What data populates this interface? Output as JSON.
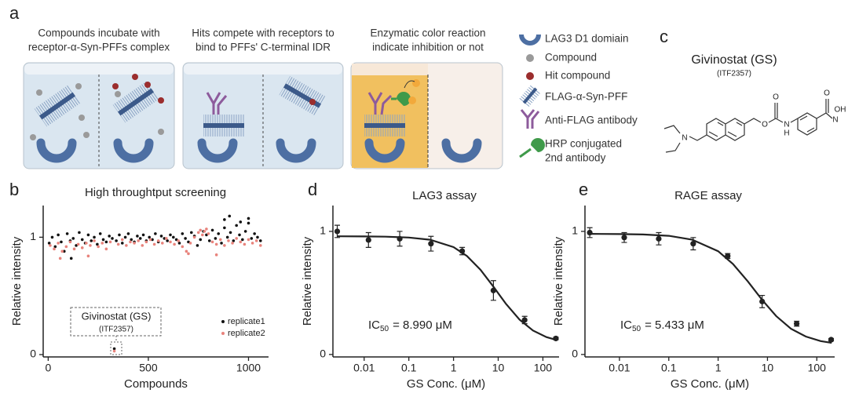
{
  "panel_a": {
    "label": "a",
    "steps": [
      [
        "Compounds incubate with",
        "receptor-α-Syn-PFFs complex"
      ],
      [
        "Hits compete with receptors to",
        "bind to PFFs' C-terminal IDR"
      ],
      [
        "Enzymatic color reaction",
        "indicate inhibition or not"
      ]
    ],
    "legend": [
      [
        "LAG3 D1 domiain"
      ],
      [
        "Compound"
      ],
      [
        "Hit compound"
      ],
      [
        "FLAG-α-Syn-PFF"
      ],
      [
        "Anti-FLAG antibody"
      ],
      [
        "HRP conjugated",
        "2nd antibody"
      ]
    ]
  },
  "panel_c": {
    "label": "c",
    "name": "Givinostat (GS)",
    "code": "(ITF2357)",
    "atoms": [
      "N",
      "O",
      "O",
      "N",
      "H",
      "O",
      "N",
      "OH"
    ]
  },
  "chart_data": [
    {
      "type": "scatter",
      "panel_label": "b",
      "title": "High throughtput screening",
      "xlabel": "Compounds",
      "ylabel": "Relative intensity",
      "xlim": [
        -25,
        1100
      ],
      "ylim": [
        -0.02,
        1.27
      ],
      "xticks": [
        0,
        500,
        1000
      ],
      "yticks": [
        0,
        1
      ],
      "legend": "lower right",
      "annotation": [
        "Givinostat (GS)",
        "(ITF2357)"
      ],
      "series": [
        {
          "name": "replicate1",
          "color": "#111111",
          "x": [
            5,
            20,
            35,
            50,
            65,
            80,
            95,
            110,
            125,
            140,
            155,
            170,
            185,
            200,
            215,
            230,
            245,
            260,
            275,
            290,
            305,
            320,
            340,
            355,
            370,
            385,
            400,
            415,
            430,
            445,
            460,
            475,
            490,
            505,
            520,
            535,
            550,
            565,
            580,
            595,
            610,
            625,
            640,
            655,
            670,
            685,
            700,
            715,
            730,
            745,
            760,
            775,
            790,
            805,
            820,
            835,
            850,
            865,
            880,
            895,
            910,
            925,
            940,
            955,
            970,
            985,
            1000,
            1015,
            1030,
            1045,
            1060,
            115,
            880,
            905,
            960,
            1000,
            330
          ],
          "values": [
            0.95,
            1.0,
            0.92,
            1.02,
            0.96,
            0.88,
            1.03,
            0.97,
            0.99,
            0.93,
            1.04,
            0.98,
            0.95,
            1.02,
            0.97,
            1.0,
            0.94,
            1.03,
            0.98,
            0.96,
            1.01,
            0.99,
            0.97,
            1.02,
            0.95,
            1.0,
            1.03,
            0.98,
            0.96,
            1.01,
            0.99,
            1.02,
            0.97,
            1.0,
            0.98,
            1.03,
            0.96,
            1.01,
            0.99,
            0.97,
            1.02,
            1.0,
            0.98,
            0.95,
            1.03,
            0.99,
            0.96,
            1.04,
            1.01,
            0.93,
            0.98,
            1.05,
            1.02,
            0.97,
            1.06,
            0.99,
            1.03,
            0.95,
            1.08,
            1.0,
            1.04,
            0.97,
            1.1,
            1.02,
            0.98,
            1.05,
            1.12,
            0.99,
            1.03,
            1.0,
            0.97,
            0.82,
            1.15,
            1.18,
            1.13,
            1.16,
            0.05
          ]
        },
        {
          "name": "replicate2",
          "color": "#e8837c",
          "x": [
            10,
            30,
            50,
            70,
            90,
            110,
            130,
            150,
            170,
            190,
            210,
            230,
            250,
            270,
            290,
            310,
            350,
            370,
            390,
            410,
            430,
            450,
            470,
            490,
            510,
            530,
            550,
            570,
            590,
            610,
            630,
            650,
            670,
            690,
            710,
            730,
            750,
            760,
            770,
            780,
            790,
            800,
            820,
            840,
            860,
            880,
            900,
            920,
            940,
            960,
            980,
            1000,
            1020,
            1040,
            1060,
            60,
            200,
            330,
            700,
            840
          ],
          "values": [
            0.93,
            0.9,
            0.95,
            0.88,
            0.92,
            0.96,
            0.9,
            0.94,
            0.91,
            0.95,
            0.93,
            0.97,
            0.92,
            0.95,
            0.9,
            0.96,
            0.94,
            0.98,
            0.93,
            0.96,
            0.95,
            0.97,
            0.93,
            0.96,
            0.98,
            0.94,
            0.97,
            0.95,
            0.99,
            0.96,
            0.94,
            0.97,
            0.92,
            0.88,
            0.95,
            1.0,
            1.04,
            1.06,
            1.02,
            1.05,
            1.07,
            1.03,
            0.96,
            0.94,
            0.98,
            0.93,
            0.97,
            0.95,
            0.99,
            0.96,
            0.94,
            0.98,
            0.95,
            0.97,
            0.93,
            0.82,
            0.84,
            0.03,
            0.86,
            0.85
          ]
        }
      ]
    },
    {
      "type": "line",
      "panel_label": "d",
      "title": "LAG3 assay",
      "xlabel": "GS Conc. (μM)",
      "ylabel": "Relative intensity",
      "xscale": "log",
      "xlim": [
        0.002,
        230
      ],
      "ylim": [
        -0.02,
        1.21
      ],
      "xticks": [
        0.01,
        0.1,
        1,
        10,
        100
      ],
      "yticks": [
        0,
        1
      ],
      "annotation": [
        "IC",
        "50",
        "= 8.990 μM"
      ],
      "points": {
        "color": "#222222",
        "x": [
          0.0025,
          0.0125,
          0.0625,
          0.3125,
          1.5625,
          7.8125,
          39.0625,
          195.3125
        ],
        "values": [
          1.0,
          0.93,
          0.94,
          0.9,
          0.84,
          0.52,
          0.28,
          0.13
        ],
        "errors": [
          0.05,
          0.06,
          0.06,
          0.06,
          0.03,
          0.08,
          0.03,
          0.01
        ]
      },
      "fit": {
        "color": "#222222",
        "x": [
          0.0025,
          0.01,
          0.03,
          0.1,
          0.3,
          1,
          2,
          4,
          8,
          15,
          30,
          60,
          120,
          200
        ],
        "values": [
          0.96,
          0.959,
          0.957,
          0.95,
          0.932,
          0.872,
          0.8,
          0.689,
          0.546,
          0.41,
          0.283,
          0.195,
          0.141,
          0.118
        ]
      }
    },
    {
      "type": "line",
      "panel_label": "e",
      "title": "RAGE assay",
      "xlabel": "GS Conc. (μM)",
      "ylabel": "Relative intensity",
      "xscale": "log",
      "xlim": [
        0.002,
        230
      ],
      "ylim": [
        -0.02,
        1.21
      ],
      "xticks": [
        0.01,
        0.1,
        1,
        10,
        100
      ],
      "yticks": [
        0,
        1
      ],
      "annotation": [
        "IC",
        "50",
        "= 5.433 μM"
      ],
      "points": {
        "color": "#222222",
        "x": [
          0.0025,
          0.0125,
          0.0625,
          0.3125,
          1.5625,
          7.8125,
          39.0625,
          195.3125
        ],
        "values": [
          0.99,
          0.95,
          0.94,
          0.9,
          0.8,
          0.43,
          0.25,
          0.12
        ],
        "errors": [
          0.04,
          0.04,
          0.05,
          0.05,
          0.02,
          0.05,
          0.02,
          0.01
        ]
      },
      "fit": {
        "color": "#222222",
        "x": [
          0.0025,
          0.01,
          0.03,
          0.1,
          0.3,
          1,
          2,
          4,
          8,
          15,
          30,
          60,
          120,
          200
        ],
        "values": [
          0.98,
          0.978,
          0.975,
          0.964,
          0.932,
          0.839,
          0.735,
          0.594,
          0.438,
          0.312,
          0.209,
          0.146,
          0.109,
          0.094
        ]
      }
    }
  ]
}
